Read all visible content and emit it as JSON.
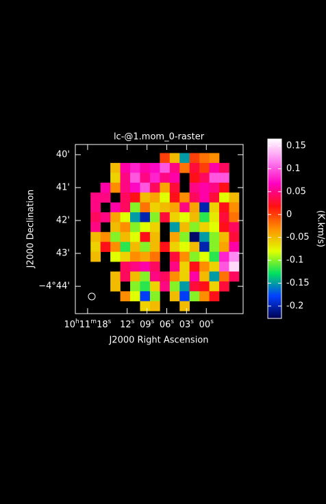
{
  "chart_data": {
    "type": "heatmap",
    "title": "lc-@1.mom_0-raster",
    "x_label": "J2000 Right Ascension",
    "y_label": "J2000 Declination",
    "colorbar_label": "(K.km/s)",
    "x": [
      16.8,
      15.3,
      13.8,
      12.3,
      10.8,
      9.3,
      7.8,
      6.3,
      4.8,
      3.3,
      1.8,
      0.3,
      -1.2,
      -2.7,
      -4.2
    ],
    "y": [
      40.1,
      40.4,
      40.7,
      41.0,
      41.3,
      41.6,
      41.9,
      42.2,
      42.5,
      42.8,
      43.1,
      43.4,
      43.7,
      44.0,
      44.3,
      44.6
    ],
    "z": [
      [
        null,
        null,
        null,
        null,
        null,
        null,
        null,
        0,
        -0.05,
        -0.15,
        0,
        -0.02,
        -0.03,
        null,
        null
      ],
      [
        null,
        null,
        -0.05,
        0.06,
        0.08,
        0.06,
        0.07,
        0.1,
        0.05,
        -0.02,
        0.03,
        0,
        0.06,
        0.04,
        null
      ],
      [
        null,
        null,
        -0.06,
        0.05,
        0.1,
        0.05,
        0.08,
        0.05,
        0.06,
        null,
        0.02,
        0.04,
        0.1,
        0.1,
        null
      ],
      [
        null,
        0.06,
        -0.03,
        0.05,
        0.07,
        0.1,
        0.04,
        -0.04,
        0.03,
        null,
        0.05,
        0.06,
        0.05,
        0.02,
        null
      ],
      [
        0.05,
        0.05,
        null,
        0.04,
        0.02,
        -0.05,
        -0.04,
        -0.08,
        0.02,
        -0.03,
        0.04,
        0.06,
        0.03,
        -0.08,
        -0.05
      ],
      [
        0.05,
        null,
        0.06,
        0.04,
        -0.1,
        -0.02,
        -0.06,
        -0.05,
        -0.04,
        0.05,
        -0.04,
        -0.2,
        -0.06,
        0.02,
        -0.03
      ],
      [
        0.04,
        0.05,
        -0.04,
        -0.08,
        -0.15,
        -0.2,
        -0.1,
        0.03,
        -0.06,
        -0.08,
        -0.05,
        -0.12,
        -0.07,
        0.03,
        -0.02
      ],
      [
        0.05,
        null,
        -0.05,
        -0.03,
        -0.1,
        -0.08,
        -0.06,
        null,
        -0.15,
        -0.05,
        -0.1,
        -0.06,
        -0.08,
        0.02,
        0.04
      ],
      [
        -0.05,
        -0.03,
        -0.1,
        -0.05,
        -0.08,
        0.02,
        -0.05,
        null,
        -0.04,
        -0.1,
        -0.22,
        -0.15,
        -0.1,
        -0.05,
        0.03
      ],
      [
        -0.06,
        0.02,
        -0.03,
        -0.12,
        -0.05,
        -0.1,
        -0.05,
        0.02,
        -0.06,
        -0.08,
        -0.05,
        -0.2,
        -0.1,
        -0.04,
        0.06
      ],
      [
        -0.05,
        null,
        -0.08,
        -0.06,
        -0.03,
        -0.04,
        -0.02,
        null,
        0.03,
        -0.03,
        -0.1,
        -0.08,
        -0.12,
        0.08,
        0.12
      ],
      [
        null,
        null,
        null,
        0.04,
        0.05,
        0.06,
        0.04,
        null,
        0.05,
        -0.06,
        0.02,
        -0.03,
        -0.06,
        0.1,
        0.15
      ],
      [
        null,
        null,
        -0.05,
        0.04,
        -0.05,
        -0.1,
        0.05,
        0.04,
        -0.03,
        -0.06,
        0.06,
        -0.05,
        -0.15,
        -0.02,
        0.04
      ],
      [
        null,
        null,
        -0.05,
        null,
        -0.1,
        -0.12,
        -0.06,
        0.05,
        -0.1,
        -0.15,
        0.03,
        0.02,
        -0.06,
        0.03,
        null
      ],
      [
        null,
        null,
        null,
        -0.03,
        -0.08,
        -0.18,
        -0.1,
        null,
        -0.05,
        -0.18,
        -0.1,
        -0.03,
        0.02,
        null,
        null
      ],
      [
        null,
        null,
        null,
        null,
        null,
        -0.06,
        -0.05,
        null,
        null,
        -0.05,
        null,
        null,
        null,
        null,
        null
      ]
    ],
    "xlim": [
      19.86,
      -5.58
    ],
    "xticks": [
      {
        "value": 18,
        "label": "10h11m18s"
      },
      {
        "value": 12,
        "label": "12s"
      },
      {
        "value": 9,
        "label": "09s"
      },
      {
        "value": 6,
        "label": "06s"
      },
      {
        "value": 3,
        "label": "03s"
      },
      {
        "value": 0,
        "label": "00s"
      }
    ],
    "ylim": [
      39.69,
      44.83
    ],
    "yticks": [
      {
        "value": 40,
        "label": "40'"
      },
      {
        "value": 41,
        "label": "41'"
      },
      {
        "value": 42,
        "label": "42'"
      },
      {
        "value": 43,
        "label": "43'"
      },
      {
        "value": 44,
        "label": "−4°44'"
      }
    ],
    "clim": [
      -0.227,
      0.165
    ],
    "cticks": [
      0.15,
      0.1,
      0.05,
      0,
      -0.05,
      -0.1,
      -0.15,
      -0.2
    ],
    "colormap": [
      "#000050",
      "#0040ff",
      "#00e060",
      "#e0ff00",
      "#ff9000",
      "#ff1010",
      "#ff00c0",
      "#ff80f0",
      "#ffffff"
    ]
  }
}
